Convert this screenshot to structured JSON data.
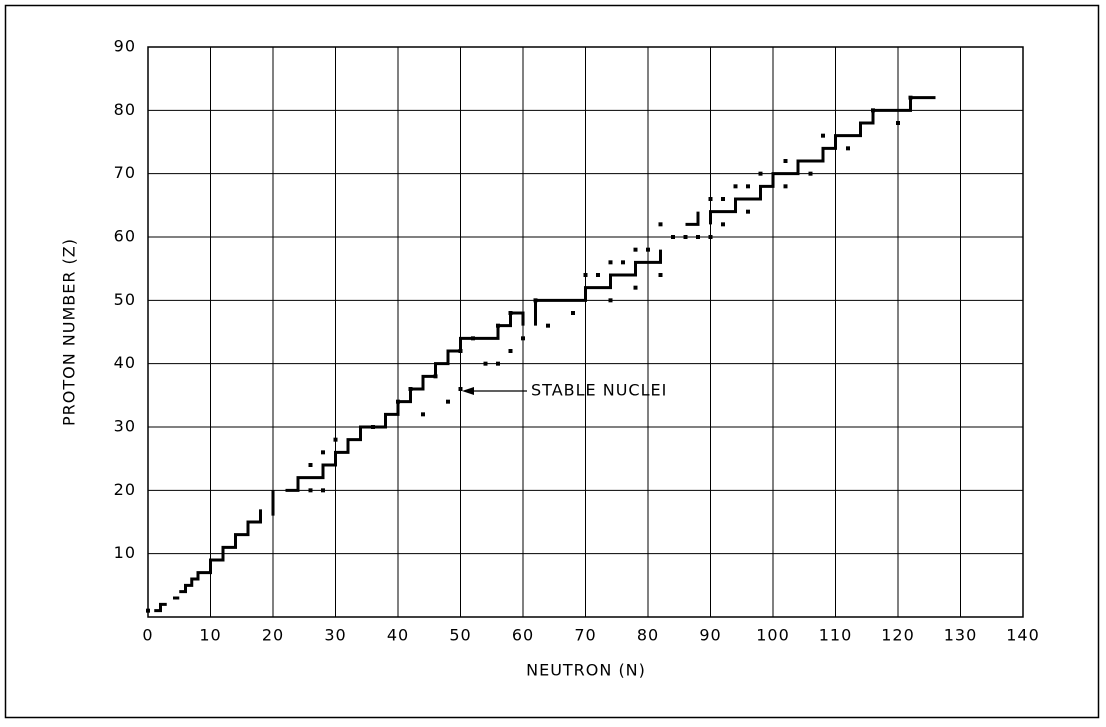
{
  "chart_data": {
    "type": "line",
    "xlabel": "NEUTRON (N)",
    "ylabel": "PROTON NUMBER (Z)",
    "annotation": "STABLE NUCLEI",
    "xlim": [
      0,
      140
    ],
    "xticks": [
      0,
      10,
      20,
      30,
      40,
      50,
      60,
      70,
      80,
      90,
      100,
      110,
      120,
      130,
      140
    ],
    "ylim": [
      0,
      90
    ],
    "yticks": [
      10,
      20,
      30,
      40,
      50,
      60,
      70,
      80,
      90
    ],
    "grid": true,
    "series": [
      {
        "mode": "line",
        "color": "#000000",
        "x": [
          1,
          2,
          2,
          3,
          null,
          4,
          5,
          null,
          5,
          6,
          6,
          7,
          7,
          8,
          8,
          10,
          10,
          12,
          12,
          14,
          14,
          16,
          16,
          18,
          18,
          null,
          20,
          20,
          null,
          22,
          24,
          24,
          28,
          28,
          30,
          30,
          32,
          32,
          34,
          34,
          38,
          38,
          40,
          40,
          42,
          42,
          44,
          44,
          46,
          46,
          48,
          48,
          50,
          50,
          52,
          52,
          56,
          56,
          58,
          58,
          60,
          60,
          null,
          62,
          62,
          64,
          64,
          70,
          70,
          74,
          74,
          78,
          78,
          82,
          82,
          null,
          86,
          88,
          88,
          null,
          90,
          90,
          94,
          94,
          98,
          98,
          100,
          100,
          104,
          104,
          108,
          108,
          110,
          110,
          114,
          114,
          116,
          116,
          118,
          118,
          122,
          122,
          126
        ],
        "values": [
          1,
          1,
          2,
          2,
          null,
          3,
          3,
          null,
          4,
          4,
          5,
          5,
          6,
          6,
          7,
          7,
          9,
          9,
          11,
          11,
          13,
          13,
          15,
          15,
          17,
          null,
          16,
          20,
          null,
          20,
          20,
          22,
          22,
          24,
          24,
          26,
          26,
          28,
          28,
          30,
          30,
          32,
          32,
          34,
          34,
          36,
          36,
          38,
          38,
          40,
          40,
          42,
          42,
          44,
          44,
          44,
          44,
          46,
          46,
          48,
          48,
          46,
          null,
          46,
          50,
          50,
          50,
          50,
          52,
          52,
          54,
          54,
          56,
          56,
          58,
          null,
          62,
          62,
          64,
          null,
          62,
          64,
          64,
          66,
          66,
          68,
          68,
          70,
          70,
          72,
          72,
          74,
          74,
          76,
          76,
          78,
          78,
          80,
          80,
          80,
          80,
          82,
          82
        ]
      },
      {
        "mode": "markers",
        "color": "#000000",
        "x": [
          0,
          26,
          28,
          26,
          28,
          30,
          36,
          40,
          42,
          44,
          46,
          48,
          50,
          50,
          52,
          54,
          56,
          56,
          58,
          58,
          60,
          62,
          64,
          68,
          70,
          72,
          74,
          74,
          76,
          78,
          78,
          80,
          82,
          82,
          84,
          86,
          88,
          90,
          90,
          92,
          92,
          94,
          96,
          96,
          98,
          102,
          102,
          106,
          108,
          112,
          116,
          120,
          122
        ],
        "values": [
          1,
          20,
          20,
          24,
          26,
          28,
          30,
          34,
          36,
          32,
          38,
          34,
          36,
          42,
          44,
          40,
          40,
          46,
          42,
          48,
          44,
          50,
          46,
          48,
          54,
          54,
          50,
          56,
          56,
          52,
          58,
          58,
          54,
          62,
          60,
          60,
          60,
          60,
          66,
          66,
          62,
          68,
          68,
          64,
          70,
          72,
          68,
          70,
          76,
          74,
          80,
          78,
          82
        ]
      }
    ]
  }
}
